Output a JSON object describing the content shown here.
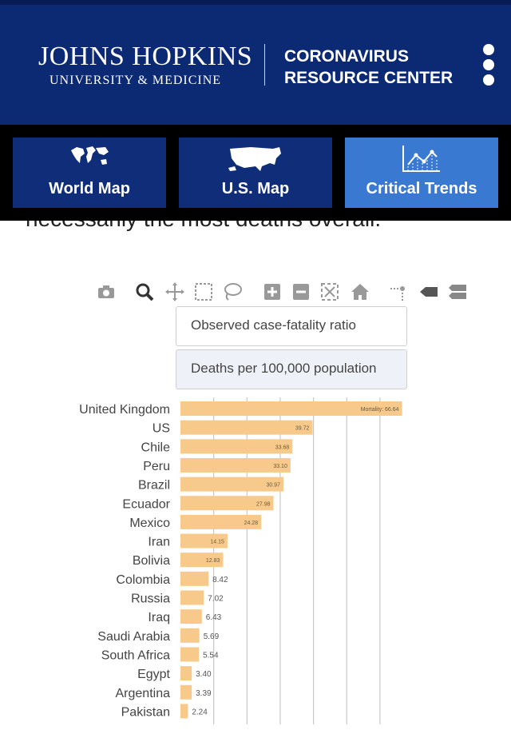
{
  "header": {
    "logo_line1": "JOHNS HOPKINS",
    "logo_line2": "UNIVERSITY & MEDICINE",
    "title_line1": "CORONAVIRUS",
    "title_line2": "RESOURCE CENTER",
    "menu_icon": "vertical-dots-icon"
  },
  "nav": {
    "world_map": "World Map",
    "us_map": "U.S. Map",
    "critical_trends": "Critical Trends"
  },
  "page_text_partial": "necessarily the most deaths overall.",
  "toolbar": {
    "icons": [
      "camera-icon",
      "zoom-icon",
      "pan-icon",
      "box-select-icon",
      "lasso-select-icon",
      "zoom-in-icon",
      "zoom-out-icon",
      "autoscale-icon",
      "reset-axes-icon",
      "spike-lines-icon",
      "hover-closest-icon",
      "hover-compare-icon"
    ]
  },
  "options": {
    "observed": "Observed case-fatality ratio",
    "deaths_per_100k": "Deaths per 100,000 population"
  },
  "colors": {
    "bar": "#f7c98a",
    "header_bg": "#0c2a74",
    "active_tab": "#3a79d2"
  },
  "chart_data": {
    "type": "bar",
    "orientation": "horizontal",
    "categories": [
      "United Kingdom",
      "US",
      "Chile",
      "Peru",
      "Brazil",
      "Ecuador",
      "Mexico",
      "Iran",
      "Bolivia",
      "Colombia",
      "Russia",
      "Iraq",
      "Saudi Arabia",
      "South Africa",
      "Egypt",
      "Argentina",
      "Pakistan"
    ],
    "values": [
      66.64,
      39.72,
      33.68,
      33.1,
      30.97,
      27.98,
      24.28,
      14.15,
      12.83,
      8.42,
      7.02,
      6.43,
      5.69,
      5.54,
      3.4,
      3.39,
      2.24
    ],
    "value_labels": [
      "Mortality: 66.64",
      "39.72",
      "33.68",
      "33.10",
      "30.97",
      "27.98",
      "24.28",
      "14.15",
      "12.83",
      "8.42",
      "7.02",
      "6.43",
      "5.69",
      "5.54",
      "3.40",
      "3.39",
      "2.24"
    ],
    "xlim": [
      0,
      70
    ],
    "grid": true
  }
}
